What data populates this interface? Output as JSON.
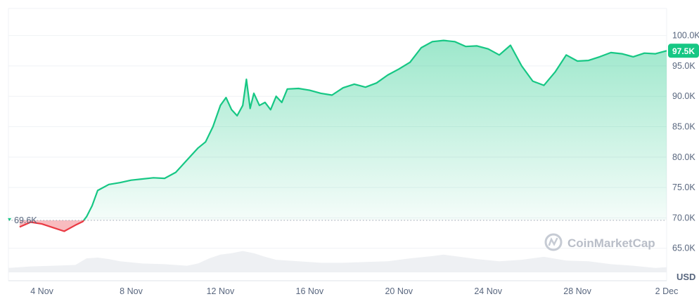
{
  "chart_data": {
    "type": "area",
    "title": "",
    "currency_label": "USD",
    "watermark": "CoinMarketCap",
    "reference": {
      "value": 69600,
      "label": "69.6K"
    },
    "last_price": {
      "value": 97500,
      "label": "97.5K"
    },
    "ylim": [
      60000,
      104000
    ],
    "y_ticks": [
      {
        "value": 65000,
        "label": "65.0K"
      },
      {
        "value": 70000,
        "label": "70.0K"
      },
      {
        "value": 75000,
        "label": "75.0K"
      },
      {
        "value": 80000,
        "label": "80.0K"
      },
      {
        "value": 85000,
        "label": "85.0K"
      },
      {
        "value": 90000,
        "label": "90.0K"
      },
      {
        "value": 95000,
        "label": "95.0K"
      },
      {
        "value": 100000,
        "label": "100.0K"
      }
    ],
    "x_range": [
      "2024-11-02T12:00",
      "2024-12-02T00:00"
    ],
    "x_ticks": [
      {
        "value": "2024-11-04",
        "label": "4 Nov"
      },
      {
        "value": "2024-11-08",
        "label": "8 Nov"
      },
      {
        "value": "2024-11-12",
        "label": "12 Nov"
      },
      {
        "value": "2024-11-16",
        "label": "16 Nov"
      },
      {
        "value": "2024-11-20",
        "label": "20 Nov"
      },
      {
        "value": "2024-11-24",
        "label": "24 Nov"
      },
      {
        "value": "2024-11-28",
        "label": "28 Nov"
      },
      {
        "value": "2024-12-02",
        "label": "2 Dec"
      }
    ],
    "colors": {
      "up": "#16c784",
      "down": "#ea3943",
      "grid": "#eff2f5",
      "volume": "#eef0f3"
    },
    "series": [
      {
        "x": [
          "2024-11-03T00:00",
          "2024-11-03T12:00",
          "2024-11-04T00:00",
          "2024-11-04T12:00",
          "2024-11-05T00:00",
          "2024-11-05T12:00",
          "2024-11-05T20:00",
          "2024-11-06T00:00",
          "2024-11-06T06:00",
          "2024-11-06T12:00",
          "2024-11-07T00:00",
          "2024-11-07T12:00",
          "2024-11-08T00:00",
          "2024-11-08T12:00",
          "2024-11-09T00:00",
          "2024-11-09T12:00",
          "2024-11-10T00:00",
          "2024-11-10T12:00",
          "2024-11-11T00:00",
          "2024-11-11T08:00",
          "2024-11-11T16:00",
          "2024-11-12T00:00",
          "2024-11-12T06:00",
          "2024-11-12T12:00",
          "2024-11-12T18:00",
          "2024-11-13T00:00",
          "2024-11-13T04:00",
          "2024-11-13T08:00",
          "2024-11-13T12:00",
          "2024-11-13T18:00",
          "2024-11-14T00:00",
          "2024-11-14T06:00",
          "2024-11-14T12:00",
          "2024-11-14T18:00",
          "2024-11-15T00:00",
          "2024-11-15T12:00",
          "2024-11-16T00:00",
          "2024-11-16T12:00",
          "2024-11-17T00:00",
          "2024-11-17T12:00",
          "2024-11-18T00:00",
          "2024-11-18T12:00",
          "2024-11-19T00:00",
          "2024-11-19T12:00",
          "2024-11-20T00:00",
          "2024-11-20T12:00",
          "2024-11-21T00:00",
          "2024-11-21T12:00",
          "2024-11-22T00:00",
          "2024-11-22T12:00",
          "2024-11-23T00:00",
          "2024-11-23T12:00",
          "2024-11-24T00:00",
          "2024-11-24T12:00",
          "2024-11-25T00:00",
          "2024-11-25T12:00",
          "2024-11-26T00:00",
          "2024-11-26T12:00",
          "2024-11-27T00:00",
          "2024-11-27T12:00",
          "2024-11-28T00:00",
          "2024-11-28T12:00",
          "2024-11-29T00:00",
          "2024-11-29T12:00",
          "2024-11-30T00:00",
          "2024-11-30T12:00",
          "2024-12-01T00:00",
          "2024-12-01T12:00",
          "2024-12-02T00:00"
        ],
        "values": [
          68500,
          69300,
          69000,
          68400,
          67800,
          68800,
          69400,
          70200,
          72000,
          74500,
          75500,
          75800,
          76200,
          76400,
          76600,
          76500,
          77500,
          79500,
          81500,
          82500,
          85000,
          88500,
          89800,
          87800,
          86800,
          88500,
          92800,
          88000,
          90500,
          88500,
          89000,
          87800,
          90000,
          89000,
          91200,
          91300,
          91000,
          90500,
          90200,
          91400,
          92000,
          91500,
          92200,
          93500,
          94500,
          95600,
          98000,
          99000,
          99200,
          99000,
          98200,
          98300,
          97800,
          96800,
          98400,
          95000,
          92500,
          91800,
          94000,
          96800,
          95800,
          95900,
          96500,
          97200,
          97000,
          96500,
          97100,
          97000,
          97500
        ]
      }
    ],
    "volume": {
      "x": [
        "2024-11-02T12:00",
        "2024-11-03T12:00",
        "2024-11-04T12:00",
        "2024-11-05T12:00",
        "2024-11-06T00:00",
        "2024-11-06T12:00",
        "2024-11-07T00:00",
        "2024-11-07T12:00",
        "2024-11-08T12:00",
        "2024-11-09T12:00",
        "2024-11-10T12:00",
        "2024-11-11T00:00",
        "2024-11-11T12:00",
        "2024-11-12T00:00",
        "2024-11-12T12:00",
        "2024-11-13T00:00",
        "2024-11-13T12:00",
        "2024-11-14T00:00",
        "2024-11-14T12:00",
        "2024-11-15T12:00",
        "2024-11-16T12:00",
        "2024-11-17T12:00",
        "2024-11-18T12:00",
        "2024-11-19T12:00",
        "2024-11-20T12:00",
        "2024-11-21T12:00",
        "2024-11-22T00:00",
        "2024-11-22T12:00",
        "2024-11-23T12:00",
        "2024-11-24T12:00",
        "2024-11-25T12:00",
        "2024-11-26T12:00",
        "2024-11-27T12:00",
        "2024-11-28T12:00",
        "2024-11-29T12:00",
        "2024-11-30T12:00",
        "2024-12-01T12:00",
        "2024-12-02T00:00"
      ],
      "values": [
        0.3,
        0.4,
        0.45,
        0.5,
        0.95,
        1.0,
        0.9,
        0.75,
        0.6,
        0.55,
        0.45,
        0.6,
        0.95,
        1.2,
        1.3,
        1.45,
        1.3,
        1.05,
        0.85,
        0.75,
        0.65,
        0.65,
        0.7,
        0.75,
        0.95,
        1.1,
        1.2,
        1.1,
        0.9,
        0.75,
        0.85,
        1.05,
        0.8,
        0.75,
        0.55,
        0.45,
        0.3,
        0.35
      ]
    }
  }
}
